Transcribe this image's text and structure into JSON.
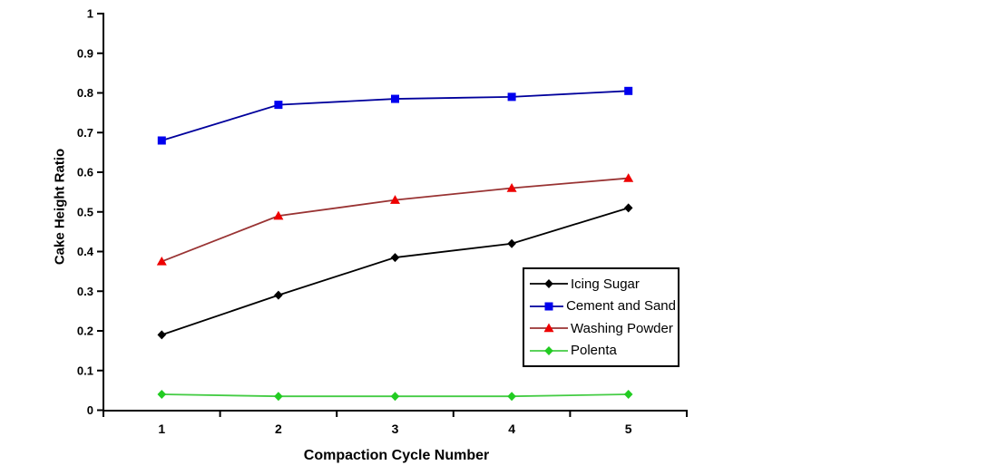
{
  "chart_data": {
    "type": "line",
    "xlabel": "Compaction Cycle Number",
    "ylabel": "Cake Height Ratio",
    "categories": [
      "1",
      "2",
      "3",
      "4",
      "5"
    ],
    "ylim": [
      0,
      1
    ],
    "y_tick_step": 0.1,
    "y_tick_labels": [
      "0",
      "0.1",
      "0.2",
      "0.3",
      "0.4",
      "0.5",
      "0.6",
      "0.7",
      "0.8",
      "0.9",
      "1"
    ],
    "grid": false,
    "axis_color": "#000000",
    "legend_position": "inside-right",
    "legend_border_color": "#000000",
    "legend_background": "#ffffff",
    "series": [
      {
        "name": "Icing Sugar",
        "marker": "diamond",
        "line_color": "#000000",
        "marker_color": "#000000",
        "values": [
          0.19,
          0.29,
          0.385,
          0.42,
          0.51
        ]
      },
      {
        "name": "Cement and Sand",
        "marker": "square",
        "line_color": "#00009c",
        "marker_color": "#0000ef",
        "values": [
          0.68,
          0.77,
          0.785,
          0.79,
          0.805
        ]
      },
      {
        "name": "Washing Powder",
        "marker": "triangle",
        "line_color": "#993333",
        "marker_color": "#ee0000",
        "values": [
          0.375,
          0.49,
          0.53,
          0.56,
          0.585
        ]
      },
      {
        "name": "Polenta",
        "marker": "diamond",
        "line_color": "#44cc44",
        "marker_color": "#22cc22",
        "values": [
          0.04,
          0.035,
          0.035,
          0.035,
          0.04
        ]
      }
    ]
  }
}
